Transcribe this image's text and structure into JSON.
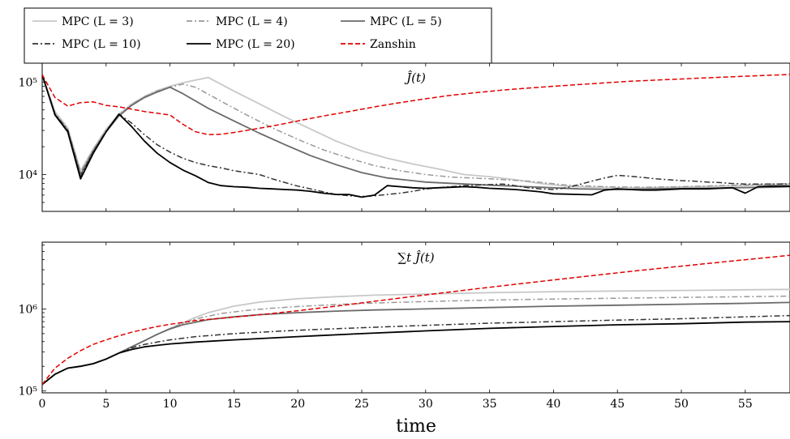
{
  "chart_data": {
    "type": "line",
    "xlabel": "time",
    "xlim": [
      0,
      58.5
    ],
    "xticks": [
      0,
      5,
      10,
      15,
      20,
      25,
      30,
      35,
      40,
      45,
      50,
      55
    ],
    "legend": {
      "position": "top-left",
      "entries": [
        {
          "label": "MPC (L = 3)",
          "color": "#c8c8c8",
          "dash": "solid"
        },
        {
          "label": "MPC (L = 4)",
          "color": "#9a9a9a",
          "dash": "dashdot"
        },
        {
          "label": "MPC (L = 5)",
          "color": "#6a6a6a",
          "dash": "solid"
        },
        {
          "label": "MPC (L = 10)",
          "color": "#333333",
          "dash": "dashdot"
        },
        {
          "label": "MPC (L = 20)",
          "color": "#000000",
          "dash": "solid"
        },
        {
          "label": "Zanshin",
          "color": "#e00000",
          "dash": "dashed"
        }
      ]
    },
    "panels": [
      {
        "title": "Ĵ(t)",
        "yscale": "log",
        "ylim": [
          4000,
          160000
        ],
        "yticks": [
          {
            "value": 10000,
            "label": "10⁴"
          },
          {
            "value": 100000,
            "label": "10⁵"
          }
        ],
        "series": [
          {
            "name": "MPC (L = 3)",
            "x": [
              0,
              1,
              2,
              3,
              4,
              5,
              6,
              7,
              8,
              9,
              10,
              11,
              12,
              13,
              15,
              17,
              19,
              21,
              23,
              25,
              27,
              29,
              31,
              33,
              35,
              37,
              39,
              41,
              43,
              45,
              47,
              49,
              51,
              53,
              55,
              57,
              58.5
            ],
            "y": [
              120000,
              48000,
              32000,
              11000,
              19000,
              31000,
              45000,
              58000,
              70000,
              81000,
              90000,
              98000,
              105000,
              112000,
              80000,
              58000,
              42000,
              31000,
              23000,
              18000,
              15000,
              13000,
              11500,
              10000,
              9500,
              8800,
              8000,
              7500,
              7300,
              7200,
              7200,
              7300,
              7400,
              7500,
              7600,
              7700,
              7800
            ]
          },
          {
            "name": "MPC (L = 4)",
            "x": [
              0,
              1,
              2,
              3,
              4,
              5,
              6,
              7,
              8,
              9,
              10,
              11,
              12,
              14,
              16,
              18,
              20,
              22,
              24,
              26,
              28,
              30,
              32,
              35,
              38,
              41,
              44,
              47,
              50,
              53,
              56,
              58.5
            ],
            "y": [
              120000,
              46000,
              31000,
              10500,
              18500,
              30000,
              44000,
              57000,
              69000,
              80000,
              88000,
              95000,
              88000,
              62000,
              44000,
              32000,
              24000,
              18500,
              15000,
              12500,
              11000,
              10000,
              9400,
              9000,
              8500,
              7700,
              7400,
              7300,
              7400,
              7600,
              7800,
              8000
            ]
          },
          {
            "name": "MPC (L = 5)",
            "x": [
              0,
              1,
              2,
              3,
              4,
              5,
              6,
              7,
              8,
              9,
              10,
              11,
              13,
              15,
              17,
              19,
              21,
              23,
              25,
              27,
              30,
              33,
              36,
              39,
              42,
              45,
              48,
              51,
              54,
              57,
              58.5
            ],
            "y": [
              120000,
              45000,
              30000,
              10000,
              18000,
              29000,
              43000,
              56000,
              68000,
              78000,
              88000,
              75000,
              52000,
              38000,
              28000,
              21000,
              16000,
              12800,
              10500,
              9200,
              8300,
              7900,
              7600,
              7300,
              7000,
              6900,
              7000,
              7100,
              7200,
              7300,
              7400
            ]
          },
          {
            "name": "MPC (L = 10)",
            "x": [
              0,
              1,
              2,
              3,
              4,
              5,
              6,
              7,
              8,
              9,
              10,
              11,
              12,
              13,
              14,
              15,
              16,
              17,
              18,
              19,
              20,
              21,
              22,
              23,
              24,
              25,
              26,
              27,
              28,
              29,
              30,
              31,
              32,
              33,
              34,
              35,
              36,
              37,
              38,
              39,
              40,
              41,
              42,
              43,
              44,
              45,
              46,
              47,
              48,
              49,
              50,
              51,
              52,
              53,
              54,
              55,
              56,
              57,
              58.5
            ],
            "y": [
              120000,
              45000,
              30000,
              9500,
              17500,
              29000,
              45000,
              36000,
              27000,
              21000,
              17500,
              15000,
              13500,
              12500,
              11800,
              11000,
              10500,
              10000,
              9000,
              8200,
              7500,
              7000,
              6500,
              6100,
              5900,
              5800,
              5900,
              6100,
              6300,
              6600,
              7000,
              7200,
              7400,
              7600,
              7700,
              7800,
              7900,
              7600,
              7200,
              7000,
              6900,
              7200,
              7800,
              8500,
              9200,
              9800,
              9600,
              9300,
              9000,
              8800,
              8600,
              8500,
              8300,
              8200,
              8000,
              7900,
              7900,
              7900,
              7900
            ]
          },
          {
            "name": "MPC (L = 20)",
            "x": [
              0,
              1,
              2,
              3,
              4,
              5,
              6,
              7,
              8,
              9,
              10,
              11,
              12,
              13,
              14,
              15,
              16,
              17,
              18,
              19,
              20,
              21,
              22,
              23,
              24,
              25,
              26,
              27,
              28,
              29,
              30,
              31,
              32,
              33,
              34,
              35,
              36,
              37,
              38,
              39,
              40,
              41,
              42,
              43,
              44,
              45,
              46,
              47,
              48,
              49,
              50,
              51,
              52,
              53,
              54,
              55,
              56,
              57,
              58.5
            ],
            "y": [
              120000,
              44000,
              29000,
              9000,
              17000,
              29000,
              45000,
              33000,
              23000,
              17000,
              13500,
              11200,
              9700,
              8200,
              7600,
              7400,
              7300,
              7100,
              7000,
              6900,
              6800,
              6600,
              6300,
              6100,
              6100,
              5700,
              6000,
              7600,
              7400,
              7200,
              7100,
              7200,
              7300,
              7400,
              7300,
              7100,
              7000,
              6900,
              6700,
              6500,
              6200,
              6150,
              6100,
              6050,
              6800,
              7000,
              6900,
              6800,
              6800,
              6900,
              7000,
              7000,
              7000,
              7100,
              7200,
              6300,
              7400,
              7500,
              7500
            ]
          },
          {
            "name": "Zanshin",
            "x": [
              0,
              1,
              2,
              3,
              4,
              5,
              6,
              7,
              8,
              9,
              10,
              11,
              12,
              13,
              14,
              15,
              16,
              18,
              20,
              22,
              24,
              26,
              28,
              30,
              32,
              34,
              36,
              38,
              40,
              42,
              44,
              46,
              48,
              50,
              52,
              54,
              56,
              58.5
            ],
            "y": [
              120000,
              68000,
              55000,
              60000,
              61000,
              56000,
              54000,
              51000,
              48000,
              46000,
              44000,
              35000,
              29000,
              27000,
              27300,
              28500,
              30000,
              33500,
              38000,
              43000,
              48000,
              54000,
              60000,
              66000,
              72000,
              77000,
              82000,
              86000,
              90000,
              94000,
              98000,
              102000,
              105000,
              108000,
              111000,
              114000,
              117000,
              121000
            ]
          }
        ]
      },
      {
        "title": "∑t Ĵ(t)",
        "yscale": "log",
        "ylim": [
          95000,
          6500000
        ],
        "yticks": [
          {
            "value": 100000,
            "label": "10⁵"
          },
          {
            "value": 1000000,
            "label": "10⁶"
          }
        ],
        "series": [
          {
            "name": "MPC (L = 3)",
            "x": [
              0,
              1,
              2,
              3,
              4,
              5,
              6,
              7,
              8,
              9,
              10,
              11,
              12,
              13,
              15,
              17,
              20,
              23,
              26,
              30,
              35,
              40,
              45,
              50,
              55,
              58.5
            ],
            "y": [
              120000,
              160000,
              190000,
              200000,
              215000,
              245000,
              290000,
              345000,
              410000,
              490000,
              580000,
              680000,
              790000,
              900000,
              1080000,
              1210000,
              1330000,
              1410000,
              1470000,
              1520000,
              1580000,
              1620000,
              1650000,
              1680000,
              1710000,
              1730000
            ]
          },
          {
            "name": "MPC (L = 4)",
            "x": [
              0,
              1,
              2,
              3,
              4,
              5,
              6,
              7,
              8,
              9,
              10,
              11,
              12,
              14,
              16,
              18,
              20,
              23,
              26,
              30,
              35,
              40,
              45,
              50,
              55,
              58.5
            ],
            "y": [
              120000,
              160000,
              190000,
              200000,
              215000,
              245000,
              290000,
              345000,
              410000,
              490000,
              575000,
              665000,
              755000,
              880000,
              960000,
              1020000,
              1070000,
              1130000,
              1180000,
              1230000,
              1280000,
              1320000,
              1350000,
              1380000,
              1410000,
              1430000
            ]
          },
          {
            "name": "MPC (L = 5)",
            "x": [
              0,
              1,
              2,
              3,
              4,
              5,
              6,
              7,
              8,
              9,
              10,
              11,
              13,
              15,
              17,
              20,
              23,
              26,
              30,
              35,
              40,
              45,
              50,
              55,
              58.5
            ],
            "y": [
              120000,
              160000,
              190000,
              200000,
              215000,
              245000,
              290000,
              345000,
              410000,
              490000,
              570000,
              640000,
              740000,
              800000,
              850000,
              900000,
              940000,
              970000,
              1000000,
              1040000,
              1080000,
              1110000,
              1140000,
              1170000,
              1200000
            ]
          },
          {
            "name": "MPC (L = 10)",
            "x": [
              0,
              1,
              2,
              3,
              4,
              5,
              6,
              7,
              8,
              9,
              10,
              12,
              15,
              20,
              25,
              30,
              35,
              40,
              45,
              50,
              55,
              58.5
            ],
            "y": [
              120000,
              160000,
              190000,
              200000,
              215000,
              245000,
              290000,
              335000,
              370000,
              395000,
              420000,
              460000,
              500000,
              550000,
              590000,
              630000,
              670000,
              700000,
              730000,
              760000,
              800000,
              830000
            ]
          },
          {
            "name": "MPC (L = 20)",
            "x": [
              0,
              1,
              2,
              3,
              4,
              5,
              6,
              7,
              8,
              9,
              10,
              12,
              15,
              20,
              25,
              30,
              35,
              40,
              45,
              50,
              55,
              58.5
            ],
            "y": [
              120000,
              160000,
              190000,
              200000,
              215000,
              245000,
              290000,
              320000,
              345000,
              360000,
              375000,
              395000,
              420000,
              460000,
              500000,
              540000,
              580000,
              610000,
              640000,
              660000,
              690000,
              700000
            ]
          },
          {
            "name": "Zanshin",
            "x": [
              0,
              1,
              2,
              3,
              4,
              5,
              6,
              7,
              8,
              9,
              10,
              12,
              14,
              16,
              18,
              20,
              23,
              26,
              30,
              34,
              38,
              42,
              46,
              50,
              54,
              58.5
            ],
            "y": [
              120000,
              190000,
              250000,
              310000,
              370000,
              420000,
              470000,
              520000,
              565000,
              610000,
              650000,
              720000,
              770000,
              820000,
              880000,
              950000,
              1080000,
              1240000,
              1480000,
              1760000,
              2080000,
              2440000,
              2860000,
              3320000,
              3840000,
              4500000
            ]
          }
        ]
      }
    ]
  }
}
